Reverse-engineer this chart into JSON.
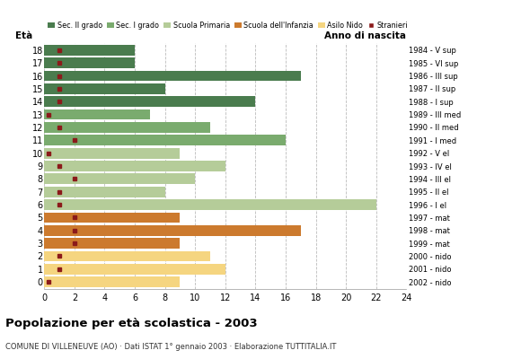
{
  "ages": [
    18,
    17,
    16,
    15,
    14,
    13,
    12,
    11,
    10,
    9,
    8,
    7,
    6,
    5,
    4,
    3,
    2,
    1,
    0
  ],
  "anno_nascita": [
    "1984 - V sup",
    "1985 - VI sup",
    "1986 - III sup",
    "1987 - II sup",
    "1988 - I sup",
    "1989 - III med",
    "1990 - II med",
    "1991 - I med",
    "1992 - V el",
    "1993 - IV el",
    "1994 - III el",
    "1995 - II el",
    "1996 - I el",
    "1997 - mat",
    "1998 - mat",
    "1999 - mat",
    "2000 - nido",
    "2001 - nido",
    "2002 - nido"
  ],
  "values": [
    6,
    6,
    17,
    8,
    14,
    7,
    11,
    16,
    9,
    12,
    10,
    8,
    22,
    9,
    17,
    9,
    11,
    12,
    9
  ],
  "stranieri": [
    1,
    1,
    1,
    1,
    1,
    0.3,
    1,
    2,
    0.3,
    1,
    2,
    1,
    1,
    2,
    2,
    2,
    1,
    1,
    0.3
  ],
  "colors": {
    "sec2": "#4a7c4e",
    "sec1": "#7aab6e",
    "primaria": "#b5cc99",
    "infanzia": "#cc7a2e",
    "nido": "#f5d580",
    "stranieri": "#8b1a1a"
  },
  "category_colors": [
    "sec2",
    "sec2",
    "sec2",
    "sec2",
    "sec2",
    "sec1",
    "sec1",
    "sec1",
    "primaria",
    "primaria",
    "primaria",
    "primaria",
    "primaria",
    "infanzia",
    "infanzia",
    "infanzia",
    "nido",
    "nido",
    "nido"
  ],
  "title": "Popolazione per età scolastica - 2003",
  "subtitle": "COMUNE DI VILLENEUVE (AO) · Dati ISTAT 1° gennaio 2003 · Elaborazione TUTTITALIA.IT",
  "legend_labels": [
    "Sec. II grado",
    "Sec. I grado",
    "Scuola Primaria",
    "Scuola dell'Infanzia",
    "Asilo Nido",
    "Stranieri"
  ],
  "legend_colors": [
    "#4a7c4e",
    "#7aab6e",
    "#b5cc99",
    "#cc7a2e",
    "#f5d580",
    "#8b1a1a"
  ],
  "xlim": [
    0,
    24
  ],
  "xticks": [
    0,
    2,
    4,
    6,
    8,
    10,
    12,
    14,
    16,
    18,
    20,
    22,
    24
  ],
  "bg_color": "#ffffff",
  "grid_color": "#bbbbbb"
}
